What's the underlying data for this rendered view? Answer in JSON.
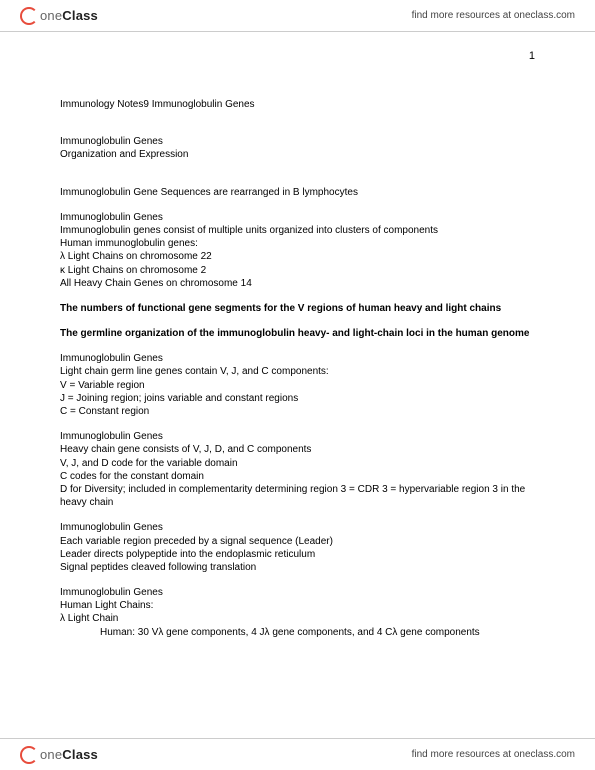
{
  "brand": {
    "one": "one",
    "class": "Class",
    "tagline": "find more resources at oneclass.com"
  },
  "pageNumber": "1",
  "doc": {
    "title": "Immunology  Notes9 Immunoglobulin Genes",
    "sec1": {
      "l1": "Immunoglobulin Genes",
      "l2": "Organization and Expression"
    },
    "sec2": {
      "l1": "Immunoglobulin Gene Sequences are rearranged in B lymphocytes"
    },
    "sec3": {
      "l1": "Immunoglobulin Genes",
      "l2": "Immunoglobulin genes consist of multiple units organized into clusters of components",
      "l3": "Human immunoglobulin genes:",
      "l4": "λ Light Chains on chromosome 22",
      "l5": "κ Light Chains on chromosome  2",
      "l6": "All Heavy Chain Genes on chromosome 14"
    },
    "bold1": "The numbers of functional gene segments for the V regions of human heavy and light chains",
    "bold2": "The germline organization of the immunoglobulin heavy- and light-chain loci in the human genome",
    "sec4": {
      "l1": "Immunoglobulin Genes",
      "l2": "Light chain germ line genes contain V, J, and C components:",
      "l3": "V = Variable region",
      "l4": "J = Joining region; joins variable and constant regions",
      "l5": "C = Constant region"
    },
    "sec5": {
      "l1": "Immunoglobulin Genes",
      "l2": "Heavy chain gene consists of V, J, D, and C components",
      "l3": "V, J, and D code for the variable domain",
      "l4": "C codes for the constant domain",
      "l5": "D for Diversity; included in complementarity determining region 3 = CDR 3 = hypervariable region 3 in the heavy chain"
    },
    "sec6": {
      "l1": "Immunoglobulin Genes",
      "l2": "Each variable region preceded by a signal sequence (Leader)",
      "l3": "Leader directs polypeptide into the endoplasmic reticulum",
      "l4": "Signal peptides cleaved following translation"
    },
    "sec7": {
      "l1": "Immunoglobulin Genes",
      "l2": "Human Light Chains:",
      "l3": "λ Light Chain",
      "l4": "Human:  30 Vλ gene components, 4 Jλ gene components, and 4 Cλ gene components"
    }
  }
}
